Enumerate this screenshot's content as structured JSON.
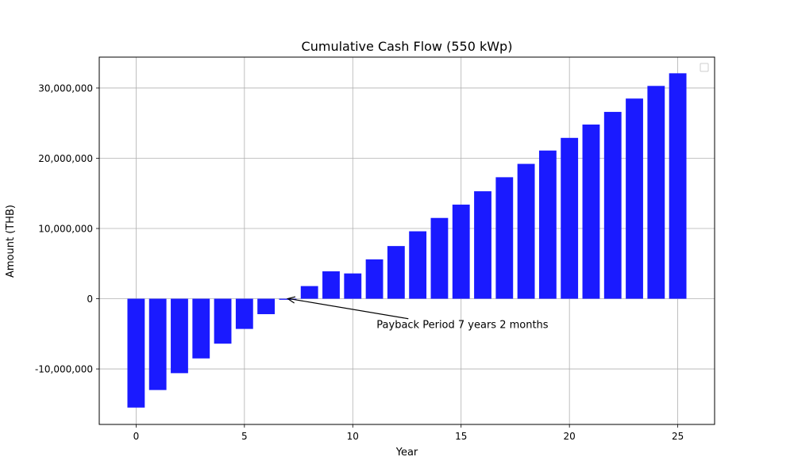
{
  "chart_data": {
    "type": "bar",
    "title": "Cumulative Cash Flow (550 kWp)",
    "xlabel": "Year",
    "ylabel": "Amount (THB)",
    "x": [
      0,
      1,
      2,
      3,
      4,
      5,
      6,
      7,
      8,
      9,
      10,
      11,
      12,
      13,
      14,
      15,
      16,
      17,
      18,
      19,
      20,
      21,
      22,
      23,
      24,
      25
    ],
    "values": [
      -15500000,
      -13000000,
      -10600000,
      -8500000,
      -6400000,
      -4300000,
      -2200000,
      -150000,
      1800000,
      3900000,
      3600000,
      5600000,
      7500000,
      9600000,
      11500000,
      13400000,
      15300000,
      17300000,
      19200000,
      21100000,
      22900000,
      24800000,
      26600000,
      28500000,
      30300000,
      32100000
    ],
    "xlim": [
      -1.7,
      26.7
    ],
    "ylim": [
      -17900000,
      34400000
    ],
    "xticks": [
      0,
      5,
      10,
      15,
      20,
      25
    ],
    "xtick_labels": [
      "0",
      "5",
      "10",
      "15",
      "20",
      "25"
    ],
    "yticks": [
      -10000000,
      0,
      10000000,
      20000000,
      30000000
    ],
    "ytick_labels": [
      "-10,000,000",
      "0",
      "10,000,000",
      "20,000,000",
      "30,000,000"
    ],
    "grid": true,
    "legend": "top-right",
    "bar_color": "#1a1aff",
    "annotation": {
      "text": "Payback Period 7 years 2 months",
      "point": [
        7,
        0
      ],
      "text_anchor_point": [
        11.1,
        -3300000
      ]
    }
  }
}
